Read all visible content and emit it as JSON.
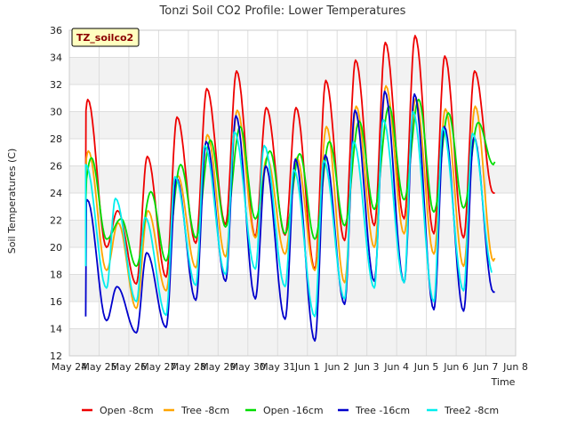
{
  "chart_data": {
    "type": "line",
    "title": "Tonzi Soil CO2 Profile: Lower Temperatures",
    "xlabel": "Time",
    "ylabel": "Soil Temperatures (C)",
    "badge": "TZ_soilco2",
    "ylim": [
      12,
      36
    ],
    "yticks": [
      12,
      14,
      16,
      18,
      20,
      22,
      24,
      26,
      28,
      30,
      32,
      34,
      36
    ],
    "xlim_days": [
      0,
      15
    ],
    "xticks": [
      {
        "day": 0,
        "label": "May 24"
      },
      {
        "day": 1,
        "label": "May 25"
      },
      {
        "day": 2,
        "label": "May 26"
      },
      {
        "day": 3,
        "label": "May 27"
      },
      {
        "day": 4,
        "label": "May 28"
      },
      {
        "day": 5,
        "label": "May 29"
      },
      {
        "day": 6,
        "label": "May 30"
      },
      {
        "day": 7,
        "label": "May 31"
      },
      {
        "day": 8,
        "label": "Jun 1"
      },
      {
        "day": 9,
        "label": "Jun 2"
      },
      {
        "day": 10,
        "label": "Jun 3"
      },
      {
        "day": 11,
        "label": "Jun 4"
      },
      {
        "day": 12,
        "label": "Jun 5"
      },
      {
        "day": 13,
        "label": "Jun 6"
      },
      {
        "day": 14,
        "label": "Jun 7"
      },
      {
        "day": 15,
        "label": "Jun 8"
      }
    ],
    "grid": true,
    "legend_position": "bottom",
    "series": [
      {
        "name": "Open -8cm",
        "color": "#ee0000",
        "start_day": 0.55,
        "daily_min": [
          18.6,
          20.0,
          17.3,
          17.8,
          20.3,
          21.7,
          20.8,
          20.9,
          18.4,
          20.5,
          21.6,
          22.1,
          21.0,
          20.7,
          24.0
        ],
        "daily_max": [
          30.9,
          22.7,
          26.7,
          29.6,
          31.7,
          33.0,
          30.3,
          30.3,
          32.3,
          33.8,
          35.1,
          35.6,
          34.1,
          33.0
        ],
        "peak_phase": 0.62,
        "end_day": 14.3,
        "end_value": 24.0
      },
      {
        "name": "Tree -8cm",
        "color": "#ffa500",
        "start_day": 0.55,
        "daily_min": [
          19.0,
          18.3,
          15.5,
          16.8,
          18.5,
          19.3,
          20.7,
          19.5,
          18.3,
          17.4,
          20.0,
          21.0,
          19.5,
          18.6,
          19.0
        ],
        "daily_max": [
          27.1,
          21.8,
          22.7,
          25.3,
          28.3,
          30.1,
          26.6,
          26.6,
          28.9,
          30.4,
          31.9,
          31.0,
          30.2,
          30.4
        ],
        "peak_phase": 0.64,
        "end_day": 14.3,
        "end_value": 19.2
      },
      {
        "name": "Open -16cm",
        "color": "#00dd00",
        "start_day": 0.55,
        "daily_min": [
          20.3,
          20.6,
          18.6,
          19.0,
          20.7,
          21.5,
          22.1,
          21.0,
          20.6,
          21.6,
          22.8,
          23.5,
          22.6,
          22.9,
          26.1
        ],
        "daily_max": [
          26.6,
          22.1,
          24.1,
          26.1,
          27.9,
          28.9,
          27.1,
          26.9,
          27.8,
          29.3,
          30.4,
          30.9,
          29.9,
          29.2
        ],
        "peak_phase": 0.74,
        "start_value": 23.2,
        "end_day": 14.3,
        "end_value": 26.3
      },
      {
        "name": "Tree -16cm",
        "color": "#0000cc",
        "start_day": 0.55,
        "daily_min": [
          13.6,
          14.6,
          13.7,
          14.1,
          16.1,
          17.5,
          16.2,
          14.7,
          13.1,
          15.8,
          17.5,
          17.4,
          15.4,
          15.3,
          16.7
        ],
        "daily_max": [
          23.5,
          17.1,
          19.6,
          25.1,
          27.8,
          29.7,
          26.0,
          26.5,
          26.8,
          30.1,
          31.5,
          31.3,
          28.9,
          28.1
        ],
        "peak_phase": 0.6,
        "start_value": 14.9,
        "end_day": 14.3,
        "end_value": 16.7
      },
      {
        "name": "Tree2 -8cm",
        "color": "#00eeee",
        "start_day": 0.55,
        "daily_min": [
          15.8,
          17.0,
          16.0,
          15.0,
          17.2,
          18.0,
          18.4,
          17.1,
          14.9,
          16.2,
          17.0,
          17.4,
          16.0,
          16.8,
          18.0
        ],
        "daily_max": [
          26.1,
          23.6,
          22.2,
          25.2,
          27.5,
          28.5,
          27.5,
          25.7,
          26.4,
          27.8,
          29.4,
          30.0,
          28.8,
          28.4
        ],
        "peak_phase": 0.55,
        "start_value": 18.6,
        "end_day": 14.2,
        "end_value": 18.2
      }
    ]
  }
}
